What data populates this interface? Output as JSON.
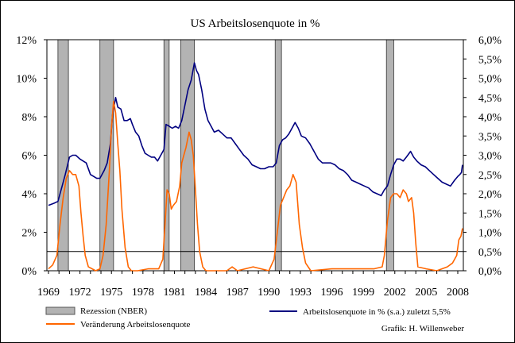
{
  "chart_data": {
    "type": "line",
    "title": "US Arbeitslosenquote  in %",
    "credit": "Grafik: H. Willenweber",
    "x_ticks": [
      "1969",
      "1972",
      "1975",
      "1978",
      "1981",
      "1984",
      "1987",
      "1990",
      "1993",
      "1996",
      "1999",
      "2002",
      "2005",
      "2008"
    ],
    "xlim": [
      1969,
      2008.6
    ],
    "y_left": {
      "ticks": [
        "0%",
        "2%",
        "4%",
        "6%",
        "8%",
        "10%",
        "12%"
      ],
      "lim": [
        0,
        12
      ]
    },
    "y_right": {
      "ticks": [
        "0,0%",
        "0,5%",
        "1,0%",
        "1,5%",
        "2,0%",
        "2,5%",
        "3,0%",
        "3,5%",
        "4,0%",
        "4,5%",
        "5,0%",
        "5,5%",
        "6,0%"
      ],
      "lim": [
        0,
        6
      ]
    },
    "legend": {
      "recession": "Rezession (NBER)",
      "blue": "Arbeitslosenquote in % (s.a.) zuletzt  5,5%",
      "orange": "Veränderung Arbeitslosenquote"
    },
    "reference_line": 0.5,
    "recessions": [
      [
        1969.9,
        1970.9
      ],
      [
        1973.9,
        1975.2
      ],
      [
        1980.0,
        1980.5
      ],
      [
        1981.6,
        1982.9
      ],
      [
        1990.6,
        1991.2
      ],
      [
        2001.2,
        2001.9
      ]
    ],
    "series": [
      {
        "name": "Arbeitslosenquote in % (s.a.) zuletzt  5,5%",
        "axis": "left",
        "color": "#000080",
        "x": [
          1969.0,
          1969.5,
          1969.9,
          1970.3,
          1970.6,
          1971.0,
          1971.3,
          1971.6,
          1972.0,
          1972.3,
          1972.6,
          1973.0,
          1973.3,
          1973.6,
          1973.9,
          1974.3,
          1974.6,
          1974.9,
          1975.1,
          1975.4,
          1975.6,
          1975.9,
          1976.2,
          1976.5,
          1976.8,
          1977.0,
          1977.3,
          1977.6,
          1977.9,
          1978.2,
          1978.5,
          1978.8,
          1979.1,
          1979.4,
          1979.7,
          1980.0,
          1980.2,
          1980.5,
          1980.8,
          1981.1,
          1981.4,
          1981.7,
          1982.0,
          1982.3,
          1982.6,
          1982.9,
          1983.1,
          1983.3,
          1983.6,
          1983.9,
          1984.2,
          1984.5,
          1984.8,
          1985.2,
          1985.6,
          1986.0,
          1986.4,
          1986.8,
          1987.2,
          1987.6,
          1988.0,
          1988.4,
          1988.8,
          1989.2,
          1989.6,
          1990.0,
          1990.4,
          1990.7,
          1991.0,
          1991.3,
          1991.6,
          1991.9,
          1992.2,
          1992.5,
          1992.8,
          1993.1,
          1993.5,
          1993.9,
          1994.3,
          1994.7,
          1995.1,
          1995.5,
          1995.9,
          1996.3,
          1996.7,
          1997.1,
          1997.5,
          1997.9,
          1998.3,
          1998.7,
          1999.1,
          1999.5,
          1999.9,
          2000.3,
          2000.7,
          2001.0,
          2001.3,
          2001.6,
          2001.9,
          2002.2,
          2002.5,
          2002.8,
          2003.1,
          2003.5,
          2003.8,
          2004.1,
          2004.5,
          2004.9,
          2005.3,
          2005.7,
          2006.1,
          2006.5,
          2006.9,
          2007.3,
          2007.7,
          2008.0,
          2008.2,
          2008.35,
          2008.45
        ],
        "values": [
          3.4,
          3.5,
          3.6,
          4.4,
          5.0,
          5.9,
          6.0,
          6.0,
          5.8,
          5.7,
          5.6,
          5.0,
          4.9,
          4.8,
          4.8,
          5.2,
          5.6,
          6.6,
          8.1,
          9.0,
          8.5,
          8.4,
          7.8,
          7.8,
          7.9,
          7.6,
          7.2,
          7.0,
          6.5,
          6.1,
          6.0,
          5.9,
          5.9,
          5.7,
          6.0,
          6.3,
          7.6,
          7.5,
          7.4,
          7.5,
          7.4,
          7.8,
          8.6,
          9.4,
          9.9,
          10.8,
          10.4,
          10.2,
          9.4,
          8.4,
          7.8,
          7.5,
          7.2,
          7.3,
          7.1,
          6.9,
          6.9,
          6.6,
          6.3,
          6.0,
          5.8,
          5.5,
          5.4,
          5.3,
          5.3,
          5.4,
          5.4,
          5.6,
          6.5,
          6.8,
          6.9,
          7.1,
          7.4,
          7.7,
          7.4,
          7.0,
          6.9,
          6.6,
          6.2,
          5.8,
          5.6,
          5.6,
          5.6,
          5.5,
          5.3,
          5.2,
          5.0,
          4.7,
          4.6,
          4.5,
          4.4,
          4.3,
          4.1,
          4.0,
          3.9,
          4.2,
          4.4,
          5.0,
          5.5,
          5.8,
          5.8,
          5.7,
          5.9,
          6.2,
          5.9,
          5.7,
          5.5,
          5.4,
          5.2,
          5.0,
          4.8,
          4.6,
          4.5,
          4.4,
          4.7,
          4.9,
          5.0,
          5.1,
          5.5
        ]
      },
      {
        "name": "Veränderung Arbeitslosenquote",
        "axis": "right",
        "color": "#ff6600",
        "x": [
          1969.0,
          1969.4,
          1969.8,
          1970.1,
          1970.4,
          1970.7,
          1971.0,
          1971.3,
          1971.6,
          1971.9,
          1972.1,
          1972.3,
          1972.5,
          1972.8,
          1973.5,
          1973.9,
          1974.2,
          1974.5,
          1974.8,
          1975.0,
          1975.2,
          1975.4,
          1975.6,
          1975.8,
          1976.0,
          1976.3,
          1976.6,
          1976.9,
          1977.5,
          1978.5,
          1979.5,
          1979.9,
          1980.1,
          1980.3,
          1980.5,
          1980.7,
          1980.9,
          1981.2,
          1981.5,
          1981.7,
          1981.9,
          1982.1,
          1982.4,
          1982.6,
          1982.8,
          1983.0,
          1983.2,
          1983.4,
          1983.7,
          1984.0,
          1986.0,
          1986.5,
          1987.0,
          1988.5,
          1990.0,
          1990.5,
          1990.8,
          1991.1,
          1991.4,
          1991.7,
          1992.0,
          1992.3,
          1992.6,
          1992.9,
          1993.2,
          1993.5,
          1994.0,
          1996.0,
          1998.0,
          2000.0,
          2000.8,
          2001.0,
          2001.3,
          2001.6,
          2001.9,
          2002.2,
          2002.5,
          2002.8,
          2003.1,
          2003.3,
          2003.6,
          2003.8,
          2004.0,
          2004.2,
          2005.0,
          2006.0,
          2007.0,
          2007.5,
          2007.9,
          2008.1,
          2008.3,
          2008.45
        ],
        "values": [
          0.05,
          0.15,
          0.4,
          1.2,
          1.9,
          2.4,
          2.6,
          2.5,
          2.5,
          2.2,
          1.5,
          0.9,
          0.4,
          0.1,
          0.0,
          0.05,
          0.4,
          1.2,
          2.6,
          3.7,
          4.4,
          4.1,
          3.3,
          2.6,
          1.6,
          0.6,
          0.1,
          0.0,
          0.0,
          0.05,
          0.05,
          0.3,
          1.2,
          2.1,
          2.0,
          1.6,
          1.7,
          1.8,
          2.2,
          2.8,
          3.0,
          3.2,
          3.6,
          3.4,
          3.0,
          2.1,
          1.2,
          0.5,
          0.1,
          0.0,
          0.0,
          0.1,
          0.0,
          0.1,
          0.0,
          0.3,
          1.0,
          1.7,
          1.9,
          2.1,
          2.2,
          2.5,
          2.3,
          1.2,
          0.6,
          0.2,
          0.0,
          0.05,
          0.05,
          0.05,
          0.1,
          0.4,
          1.3,
          1.9,
          2.0,
          2.0,
          1.9,
          2.1,
          2.0,
          1.8,
          1.9,
          1.5,
          0.7,
          0.1,
          0.05,
          0.0,
          0.1,
          0.2,
          0.4,
          0.8,
          0.9,
          1.1
        ]
      }
    ]
  }
}
